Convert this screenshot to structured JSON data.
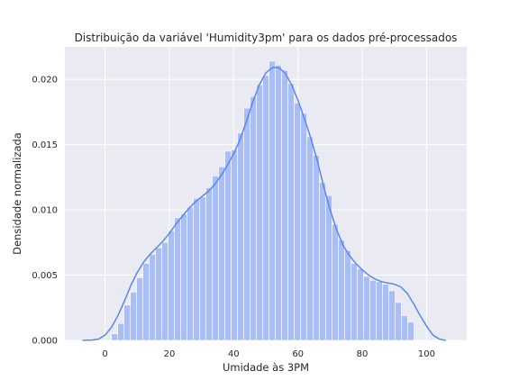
{
  "chart_data": {
    "type": "bar",
    "title": "Distribuição da variável 'Humidity3pm' para os dados pré-processados",
    "xlabel": "Umidade às 3PM",
    "ylabel": "Densidade normalizada",
    "xlim": [
      -12.5,
      112.5
    ],
    "ylim": [
      0,
      0.0225
    ],
    "xticks": [
      0,
      20,
      40,
      60,
      80,
      100
    ],
    "xtick_labels": [
      "0",
      "20",
      "40",
      "60",
      "80",
      "100"
    ],
    "yticks": [
      0,
      0.005,
      0.01,
      0.015,
      0.02
    ],
    "ytick_labels": [
      "0.000",
      "0.005",
      "0.010",
      "0.015",
      "0.020"
    ],
    "grid": true,
    "colors": {
      "background": "#eaeaf2",
      "grid": "#ffffff",
      "bars": "#a9bef5",
      "kde": "#5b87e8"
    },
    "histogram": {
      "bin_start": 2,
      "bin_width": 1.96,
      "values": [
        0.0005,
        0.0013,
        0.0027,
        0.0037,
        0.0048,
        0.0059,
        0.0066,
        0.0071,
        0.0075,
        0.0084,
        0.0094,
        0.0097,
        0.0102,
        0.0109,
        0.011,
        0.0117,
        0.0126,
        0.0133,
        0.0145,
        0.0146,
        0.0159,
        0.0178,
        0.0187,
        0.0196,
        0.0203,
        0.0214,
        0.0211,
        0.0207,
        0.0197,
        0.0182,
        0.0174,
        0.0156,
        0.0142,
        0.0121,
        0.0111,
        0.0089,
        0.0077,
        0.0069,
        0.0059,
        0.0055,
        0.0049,
        0.0046,
        0.0045,
        0.0043,
        0.0038,
        0.0029,
        0.0019,
        0.0014
      ]
    },
    "kde": {
      "x": [
        -7,
        -4,
        -2,
        0,
        2,
        4,
        6,
        8,
        10,
        12,
        14,
        16,
        18,
        20,
        22,
        24,
        26,
        28,
        30,
        32,
        34,
        36,
        38,
        40,
        42,
        44,
        46,
        48,
        50,
        52,
        54,
        56,
        58,
        60,
        62,
        64,
        66,
        68,
        70,
        72,
        74,
        76,
        78,
        80,
        82,
        84,
        86,
        88,
        90,
        92,
        94,
        96,
        98,
        100,
        102,
        104,
        106
      ],
      "y": [
        0.0,
        3e-05,
        0.0001,
        0.0004,
        0.001,
        0.0019,
        0.003,
        0.0042,
        0.0052,
        0.006,
        0.0066,
        0.0071,
        0.0076,
        0.0082,
        0.0089,
        0.0095,
        0.0101,
        0.0106,
        0.011,
        0.0114,
        0.0119,
        0.0126,
        0.0134,
        0.0143,
        0.0154,
        0.0168,
        0.0183,
        0.0196,
        0.0205,
        0.0209,
        0.0209,
        0.0205,
        0.0196,
        0.0184,
        0.017,
        0.0155,
        0.0138,
        0.0118,
        0.01,
        0.0085,
        0.0073,
        0.0065,
        0.0059,
        0.0054,
        0.005,
        0.0047,
        0.0045,
        0.0044,
        0.0043,
        0.0041,
        0.0036,
        0.0028,
        0.0019,
        0.0011,
        0.0004,
        0.0001,
        0.0
      ]
    }
  }
}
